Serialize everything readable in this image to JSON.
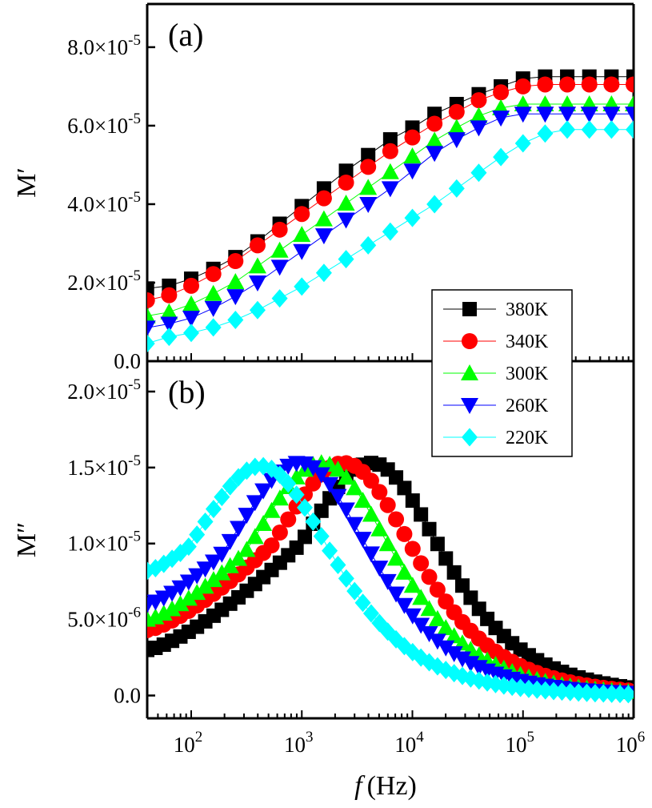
{
  "figure": {
    "x_axis_label_symbol": "f",
    "x_axis_label_unit": "(Hz)"
  },
  "chart_data": [
    {
      "type": "scatter",
      "panel_label": "(a)",
      "ylabel": "M′",
      "xscale": "log",
      "xlim": [
        40,
        1000000
      ],
      "ylim": [
        0,
        9.1e-05
      ],
      "grid": false,
      "legend_position": "bottom-right",
      "x_tick_labels": [],
      "y_ticks": [
        {
          "value": 0,
          "label": "0.0"
        },
        {
          "value": 2e-05,
          "label": "2.0×10",
          "exp": "-5"
        },
        {
          "value": 4e-05,
          "label": "4.0×10",
          "exp": "-5"
        },
        {
          "value": 6e-05,
          "label": "6.0×10",
          "exp": "-5"
        },
        {
          "value": 8e-05,
          "label": "8.0×10",
          "exp": "-5"
        }
      ],
      "series": [
        {
          "name": "380K",
          "color": "#000000",
          "marker": "square",
          "x_start_log": 1.6,
          "x_step_log": 0.2,
          "n": 24,
          "values": [
            1.85e-05,
            1.92e-05,
            2.1e-05,
            2.35e-05,
            2.65e-05,
            3.05e-05,
            3.5e-05,
            3.95e-05,
            4.4e-05,
            4.85e-05,
            5.25e-05,
            5.65e-05,
            5.95e-05,
            6.3e-05,
            6.55e-05,
            6.8e-05,
            7e-05,
            7.2e-05,
            7.25e-05,
            7.25e-05,
            7.25e-05,
            7.25e-05,
            7.25e-05,
            7.25e-05
          ]
        },
        {
          "name": "340K",
          "color": "#ff0000",
          "marker": "circle",
          "x_start_log": 1.6,
          "x_step_log": 0.2,
          "n": 24,
          "values": [
            1.55e-05,
            1.68e-05,
            1.92e-05,
            2.22e-05,
            2.55e-05,
            2.95e-05,
            3.35e-05,
            3.75e-05,
            4.15e-05,
            4.55e-05,
            4.95e-05,
            5.35e-05,
            5.7e-05,
            6.05e-05,
            6.35e-05,
            6.65e-05,
            6.85e-05,
            7e-05,
            7.05e-05,
            7.05e-05,
            7.05e-05,
            7.05e-05,
            7.05e-05,
            7.05e-05
          ]
        },
        {
          "name": "300K",
          "color": "#00ff00",
          "marker": "triangle-up",
          "x_start_log": 1.6,
          "x_step_log": 0.2,
          "n": 24,
          "values": [
            1.15e-05,
            1.25e-05,
            1.45e-05,
            1.72e-05,
            2.02e-05,
            2.42e-05,
            2.82e-05,
            3.22e-05,
            3.62e-05,
            4.02e-05,
            4.42e-05,
            4.82e-05,
            5.22e-05,
            5.62e-05,
            5.95e-05,
            6.25e-05,
            6.45e-05,
            6.55e-05,
            6.55e-05,
            6.55e-05,
            6.55e-05,
            6.55e-05,
            6.55e-05,
            6.55e-05
          ]
        },
        {
          "name": "260K",
          "color": "#0000ff",
          "marker": "triangle-down",
          "x_start_log": 1.6,
          "x_step_log": 0.2,
          "n": 24,
          "values": [
            8.5e-06,
            9.5e-06,
            1.1e-05,
            1.35e-05,
            1.65e-05,
            2e-05,
            2.4e-05,
            2.8e-05,
            3.2e-05,
            3.6e-05,
            4e-05,
            4.4e-05,
            4.85e-05,
            5.3e-05,
            5.65e-05,
            5.95e-05,
            6.2e-05,
            6.3e-05,
            6.3e-05,
            6.3e-05,
            6.3e-05,
            6.3e-05,
            6.3e-05,
            6.3e-05
          ]
        },
        {
          "name": "220K",
          "color": "#00ffff",
          "marker": "diamond",
          "x_start_log": 1.6,
          "x_step_log": 0.2,
          "n": 24,
          "values": [
            4.5e-06,
            6.2e-06,
            7.2e-06,
            8.6e-06,
            1.05e-05,
            1.3e-05,
            1.6e-05,
            1.9e-05,
            2.25e-05,
            2.6e-05,
            2.95e-05,
            3.3e-05,
            3.65e-05,
            4e-05,
            4.4e-05,
            4.8e-05,
            5.2e-05,
            5.55e-05,
            5.8e-05,
            5.9e-05,
            5.9e-05,
            5.9e-05,
            5.9e-05,
            5.9e-05
          ]
        }
      ]
    },
    {
      "type": "scatter",
      "panel_label": "(b)",
      "ylabel": "M″",
      "xlabel": "f (Hz)",
      "xscale": "log",
      "xlim": [
        40,
        1000000
      ],
      "ylim": [
        -1.5e-06,
        2.2e-05
      ],
      "grid": false,
      "x_ticks": [
        {
          "value": 100,
          "base": "10",
          "exp": "2"
        },
        {
          "value": 1000,
          "base": "10",
          "exp": "3"
        },
        {
          "value": 10000,
          "base": "10",
          "exp": "4"
        },
        {
          "value": 100000,
          "base": "10",
          "exp": "5"
        },
        {
          "value": 1000000,
          "base": "10",
          "exp": "6"
        }
      ],
      "y_ticks": [
        {
          "value": 0,
          "label": "0.0"
        },
        {
          "value": 5e-06,
          "label": "5.0×10",
          "exp": "-6"
        },
        {
          "value": 1e-05,
          "label": "1.0×10",
          "exp": "-5"
        },
        {
          "value": 1.5e-05,
          "label": "1.5×10",
          "exp": "-5"
        },
        {
          "value": 2e-05,
          "label": "2.0×10",
          "exp": "-5"
        }
      ],
      "series": [
        {
          "name": "380K",
          "color": "#000000",
          "marker": "square",
          "peak_log_f": 3.7,
          "peak": 1.52e-05,
          "floor": 0.0,
          "width": 1.6,
          "low": 3e-06
        },
        {
          "name": "340K",
          "color": "#ff0000",
          "marker": "circle",
          "peak_log_f": 3.45,
          "peak": 1.52e-05,
          "floor": 0.0,
          "width": 1.6,
          "low": 4.3e-06
        },
        {
          "name": "300K",
          "color": "#00ff00",
          "marker": "triangle-up",
          "peak_log_f": 3.25,
          "peak": 1.52e-05,
          "floor": 0.0,
          "width": 1.6,
          "low": 5e-06
        },
        {
          "name": "260K",
          "color": "#0000ff",
          "marker": "triangle-down",
          "peak_log_f": 3.05,
          "peak": 1.52e-05,
          "floor": 0.0,
          "width": 1.6,
          "low": 6e-06
        },
        {
          "name": "220K",
          "color": "#00ffff",
          "marker": "diamond",
          "peak_log_f": 2.7,
          "peak": 1.5e-05,
          "floor": 0.0,
          "width": 1.55,
          "low": 8.2e-06
        }
      ]
    }
  ]
}
